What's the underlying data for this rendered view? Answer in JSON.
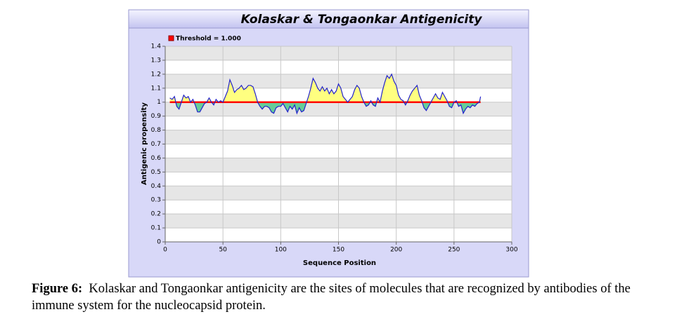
{
  "chart_data": {
    "type": "line",
    "title": "Kolaskar & Tongaonkar  Antigenicity",
    "xlabel": "Sequence Position",
    "ylabel": "Antigenic propensity",
    "threshold": 1,
    "threshold_label": "Threshold = 1.000",
    "threshold_color": "#ff0000",
    "above_color": "#ffff80",
    "below_color": "#66cc99",
    "xlim": [
      0,
      300
    ],
    "xticks": [
      0,
      50,
      100,
      150,
      200,
      250,
      300
    ],
    "ylim": [
      0,
      1.4
    ],
    "yticks": [
      0,
      0.1,
      0.2,
      0.3,
      0.4,
      0.5,
      0.6,
      0.7,
      0.8,
      0.9,
      1,
      1.1,
      1.2,
      1.3,
      1.4
    ],
    "grid": true,
    "series": [
      {
        "color": "#2222cc",
        "x": [
          4,
          6,
          8,
          10,
          12,
          14,
          16,
          18,
          20,
          22,
          24,
          26,
          28,
          30,
          32,
          34,
          36,
          38,
          40,
          42,
          44,
          46,
          48,
          50,
          52,
          54,
          56,
          58,
          60,
          62,
          64,
          66,
          68,
          70,
          72,
          74,
          76,
          78,
          80,
          82,
          84,
          86,
          88,
          90,
          92,
          94,
          96,
          98,
          100,
          102,
          104,
          106,
          108,
          110,
          112,
          114,
          116,
          118,
          120,
          122,
          124,
          126,
          128,
          130,
          132,
          134,
          136,
          138,
          140,
          142,
          144,
          146,
          148,
          150,
          152,
          154,
          156,
          158,
          160,
          162,
          164,
          166,
          168,
          170,
          172,
          174,
          176,
          178,
          180,
          182,
          184,
          186,
          188,
          190,
          192,
          194,
          196,
          198,
          200,
          202,
          204,
          206,
          208,
          210,
          212,
          214,
          216,
          218,
          220,
          222,
          224,
          226,
          228,
          230,
          232,
          234,
          236,
          238,
          240,
          242,
          244,
          246,
          248,
          250,
          252,
          254,
          256,
          258,
          260,
          262,
          264,
          266,
          268,
          270,
          272,
          273
        ],
        "values": [
          1.03,
          1.02,
          1.04,
          0.97,
          0.95,
          1.0,
          1.05,
          1.03,
          1.04,
          1.0,
          1.02,
          0.98,
          0.93,
          0.93,
          0.96,
          0.99,
          1.0,
          1.03,
          1.0,
          0.98,
          1.02,
          1.0,
          1.01,
          1.0,
          1.04,
          1.08,
          1.16,
          1.12,
          1.07,
          1.09,
          1.1,
          1.12,
          1.09,
          1.1,
          1.12,
          1.12,
          1.11,
          1.06,
          1.0,
          0.97,
          0.95,
          0.97,
          0.97,
          0.96,
          0.93,
          0.92,
          0.96,
          0.97,
          0.97,
          0.99,
          0.96,
          0.93,
          0.97,
          0.95,
          0.98,
          0.92,
          0.96,
          0.93,
          0.94,
          0.99,
          1.04,
          1.1,
          1.17,
          1.14,
          1.1,
          1.08,
          1.11,
          1.08,
          1.1,
          1.06,
          1.09,
          1.06,
          1.08,
          1.13,
          1.1,
          1.04,
          1.02,
          1.0,
          1.02,
          1.04,
          1.09,
          1.12,
          1.1,
          1.04,
          1.0,
          0.97,
          0.98,
          1.01,
          0.98,
          0.97,
          1.03,
          1.0,
          1.08,
          1.14,
          1.19,
          1.17,
          1.2,
          1.15,
          1.12,
          1.05,
          1.02,
          1.01,
          0.98,
          1.01,
          1.05,
          1.08,
          1.1,
          1.12,
          1.05,
          1.01,
          0.96,
          0.94,
          0.97,
          1.0,
          1.03,
          1.06,
          1.03,
          1.02,
          1.07,
          1.04,
          1.01,
          0.97,
          0.96,
          1.0,
          1.01,
          0.97,
          0.98,
          0.92,
          0.95,
          0.97,
          0.96,
          0.98,
          0.97,
          0.99,
          1.0,
          1.04
        ]
      }
    ]
  },
  "caption": {
    "label": "Figure 6:",
    "text": "Kolaskar and Tongaonkar antigenicity are the sites of molecules that are recognized by antibodies of the immune system for the nucleocapsid protein."
  }
}
